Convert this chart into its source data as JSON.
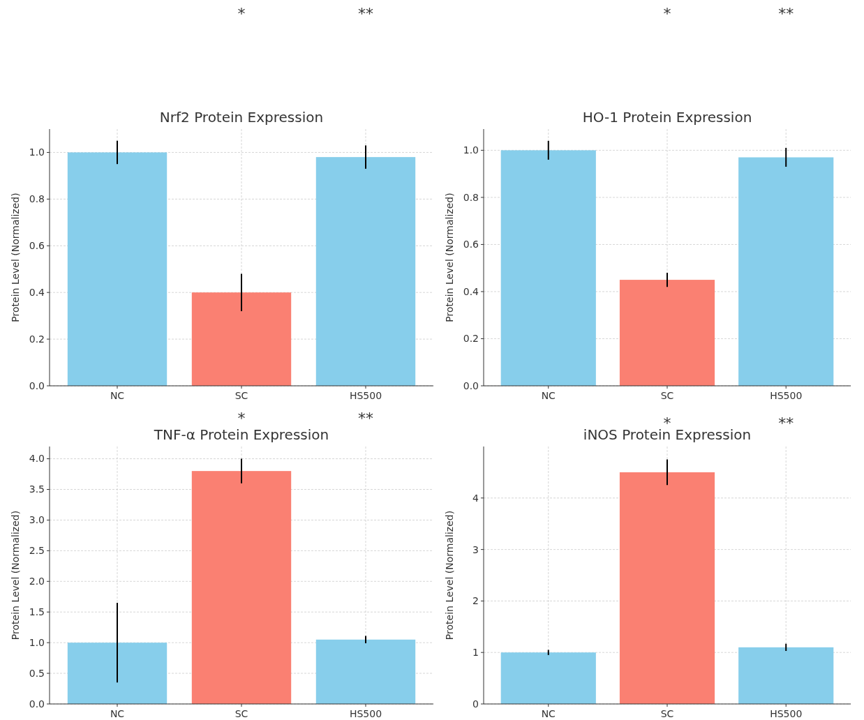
{
  "chart_data": [
    {
      "type": "bar",
      "title": "Nrf2 Protein Expression",
      "ylabel": "Protein Level (Normalized)",
      "categories": [
        "NC",
        "SC",
        "HS500"
      ],
      "colors": [
        "#87ceeb",
        "#fa8072",
        "#87ceeb"
      ],
      "values": [
        1.0,
        0.4,
        0.98
      ],
      "errors": [
        0.05,
        0.08,
        0.05
      ],
      "ylim": [
        0,
        1.1
      ],
      "yticks": [
        {
          "value": 0,
          "label": "0.0"
        },
        {
          "value": 0.2,
          "label": "0.2"
        },
        {
          "value": 0.4,
          "label": "0.4"
        },
        {
          "value": 0.6,
          "label": "0.6"
        },
        {
          "value": 0.8,
          "label": "0.8"
        },
        {
          "value": 1,
          "label": "1.0"
        }
      ],
      "grid": true,
      "annotations": [
        "*",
        "**"
      ]
    },
    {
      "type": "bar",
      "title": "HO-1 Protein Expression",
      "ylabel": "Protein Level (Normalized)",
      "categories": [
        "NC",
        "SC",
        "HS500"
      ],
      "colors": [
        "#87ceeb",
        "#fa8072",
        "#87ceeb"
      ],
      "values": [
        1.0,
        0.45,
        0.97
      ],
      "errors": [
        0.04,
        0.03,
        0.04
      ],
      "ylim": [
        0,
        1.09
      ],
      "yticks": [
        {
          "value": 0,
          "label": "0.0"
        },
        {
          "value": 0.2,
          "label": "0.2"
        },
        {
          "value": 0.4,
          "label": "0.4"
        },
        {
          "value": 0.6,
          "label": "0.6"
        },
        {
          "value": 0.8,
          "label": "0.8"
        },
        {
          "value": 1,
          "label": "1.0"
        }
      ],
      "grid": true,
      "annotations": [
        "*",
        "**"
      ]
    },
    {
      "type": "bar",
      "title": "TNF-α Protein Expression",
      "ylabel": "Protein Level (Normalized)",
      "categories": [
        "NC",
        "SC",
        "HS500"
      ],
      "colors": [
        "#87ceeb",
        "#fa8072",
        "#87ceeb"
      ],
      "values": [
        1.0,
        3.8,
        1.05
      ],
      "errors": [
        0.65,
        0.2,
        0.06
      ],
      "ylim": [
        0,
        4.2
      ],
      "yticks": [
        {
          "value": 0,
          "label": "0.0"
        },
        {
          "value": 0.5,
          "label": "0.5"
        },
        {
          "value": 1,
          "label": "1.0"
        },
        {
          "value": 1.5,
          "label": "1.5"
        },
        {
          "value": 2,
          "label": "2.0"
        },
        {
          "value": 2.5,
          "label": "2.5"
        },
        {
          "value": 3,
          "label": "3.0"
        },
        {
          "value": 3.5,
          "label": "3.5"
        },
        {
          "value": 4,
          "label": "4.0"
        }
      ],
      "grid": true,
      "annotations": [
        "*",
        "**"
      ]
    },
    {
      "type": "bar",
      "title": "iNOS Protein Expression",
      "ylabel": "Protein Level (Normalized)",
      "categories": [
        "NC",
        "SC",
        "HS500"
      ],
      "colors": [
        "#87ceeb",
        "#fa8072",
        "#87ceeb"
      ],
      "values": [
        1.0,
        4.5,
        1.1
      ],
      "errors": [
        0.05,
        0.25,
        0.07
      ],
      "ylim": [
        0,
        5
      ],
      "yticks": [
        0,
        1,
        2,
        3,
        4
      ],
      "grid": true,
      "annotations": [
        "*",
        "**"
      ]
    }
  ]
}
